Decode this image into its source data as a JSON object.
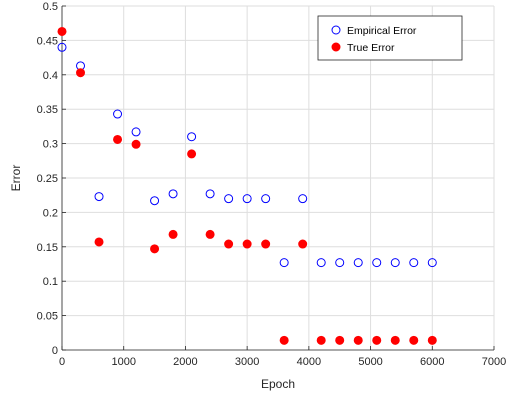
{
  "chart_data": {
    "type": "scatter",
    "xlabel": "Epoch",
    "ylabel": "Error",
    "xlim": [
      0,
      7000
    ],
    "ylim": [
      0,
      0.5
    ],
    "xticks": [
      0,
      1000,
      2000,
      3000,
      4000,
      5000,
      6000,
      7000
    ],
    "yticks": [
      0,
      0.05,
      0.1,
      0.15,
      0.2,
      0.25,
      0.3,
      0.35,
      0.4,
      0.45,
      0.5
    ],
    "grid": true,
    "legend_position": "top-right",
    "series": [
      {
        "name": "Empirical Error",
        "marker": "open-circle",
        "color": "#0000ff",
        "x": [
          0,
          300,
          600,
          900,
          1200,
          1500,
          1800,
          2100,
          2400,
          2700,
          3000,
          3300,
          3600,
          3900,
          4200,
          4500,
          4800,
          5100,
          5400,
          5700,
          6000
        ],
        "y": [
          0.44,
          0.413,
          0.223,
          0.343,
          0.317,
          0.217,
          0.227,
          0.31,
          0.227,
          0.22,
          0.22,
          0.22,
          0.127,
          0.22,
          0.127,
          0.127,
          0.127,
          0.127,
          0.127,
          0.127,
          0.127
        ]
      },
      {
        "name": "True Error",
        "marker": "filled-circle",
        "color": "#ff0000",
        "x": [
          0,
          300,
          600,
          900,
          1200,
          1500,
          1800,
          2100,
          2400,
          2700,
          3000,
          3300,
          3600,
          3900,
          4200,
          4500,
          4800,
          5100,
          5400,
          5700,
          6000
        ],
        "y": [
          0.463,
          0.403,
          0.157,
          0.306,
          0.299,
          0.147,
          0.168,
          0.285,
          0.168,
          0.154,
          0.154,
          0.154,
          0.014,
          0.154,
          0.014,
          0.014,
          0.014,
          0.014,
          0.014,
          0.014,
          0.014
        ]
      }
    ]
  }
}
